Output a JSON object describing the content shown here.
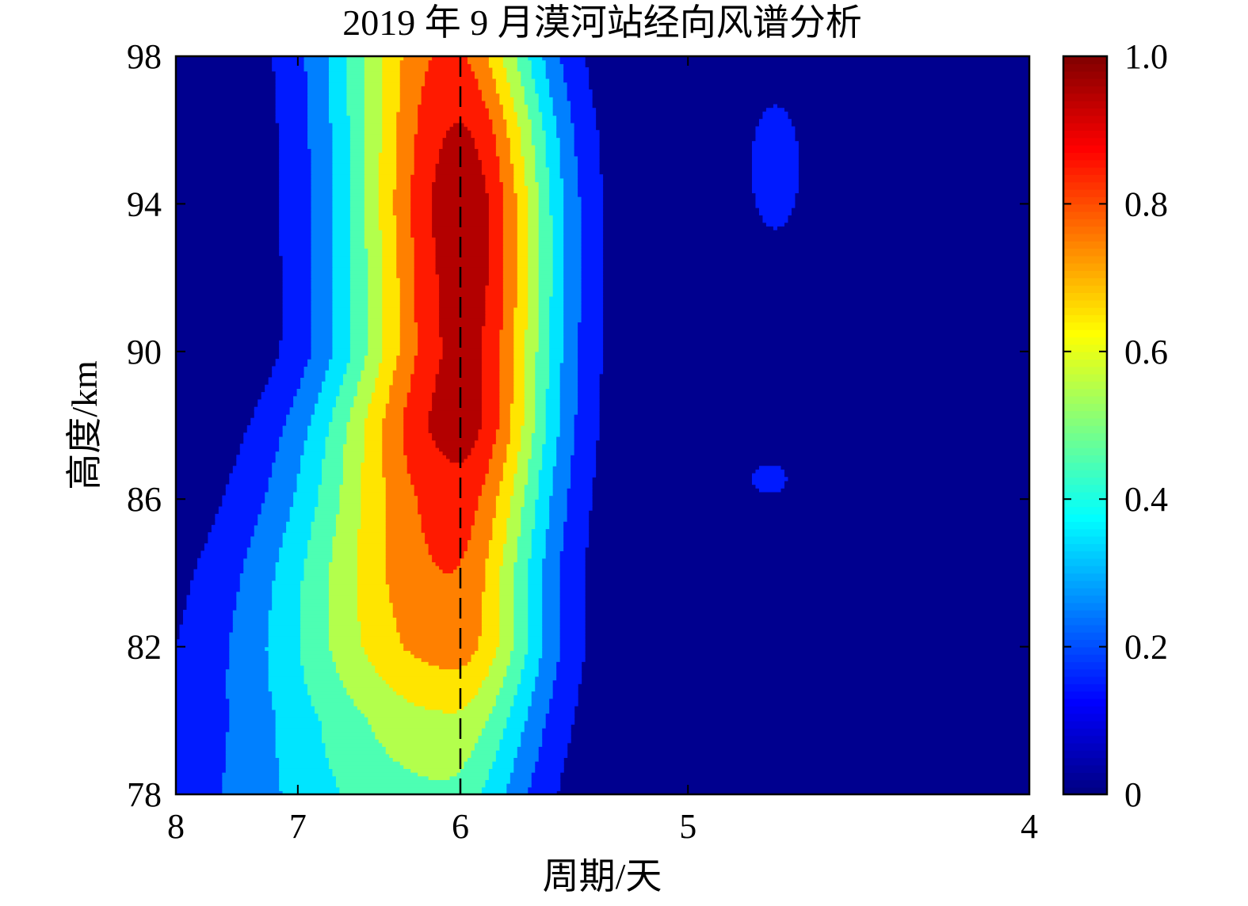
{
  "chart_data": {
    "type": "heatmap",
    "title": "2019 年 9 月漠河站经向风谱分析",
    "xlabel": "周期/天",
    "ylabel": "高度/km",
    "x_scale": "reciprocal",
    "x_ticks": [
      8,
      7,
      6,
      5,
      4
    ],
    "y_ticks": [
      78,
      82,
      86,
      90,
      94,
      98
    ],
    "xlim": [
      8,
      4
    ],
    "ylim": [
      78,
      98
    ],
    "reference_line": {
      "x": 6,
      "style": "dashed"
    },
    "colorbar": {
      "colormap": "jet",
      "ticks": [
        "0",
        "0.2",
        "0.4",
        "0.6",
        "0.8",
        "1.0"
      ],
      "range": [
        0,
        1
      ],
      "levels": 10
    },
    "heights": [
      78,
      80,
      82,
      84,
      86,
      88,
      90,
      92,
      94,
      96,
      98
    ],
    "peaks": [
      {
        "height": 78,
        "period": 6.1,
        "amplitude": 0.48
      },
      {
        "height": 80,
        "period": 6.05,
        "amplitude": 0.58
      },
      {
        "height": 82,
        "period": 6.03,
        "amplitude": 0.75
      },
      {
        "height": 84,
        "period": 6.05,
        "amplitude": 0.8
      },
      {
        "height": 86,
        "period": 6.02,
        "amplitude": 0.85
      },
      {
        "height": 88,
        "period": 6.0,
        "amplitude": 0.95
      },
      {
        "height": 90,
        "period": 5.98,
        "amplitude": 0.93
      },
      {
        "height": 92,
        "period": 5.97,
        "amplitude": 0.95
      },
      {
        "height": 94,
        "period": 5.98,
        "amplitude": 0.97
      },
      {
        "height": 96,
        "period": 6.0,
        "amplitude": 0.91
      },
      {
        "height": 98,
        "period": 6.05,
        "amplitude": 0.82
      }
    ],
    "secondary_features": [
      {
        "period": 4.7,
        "height_range": [
          92,
          98
        ],
        "amplitude": 0.12
      },
      {
        "period": 4.72,
        "height_range": [
          85.6,
          87.5
        ],
        "amplitude": 0.11
      }
    ]
  }
}
